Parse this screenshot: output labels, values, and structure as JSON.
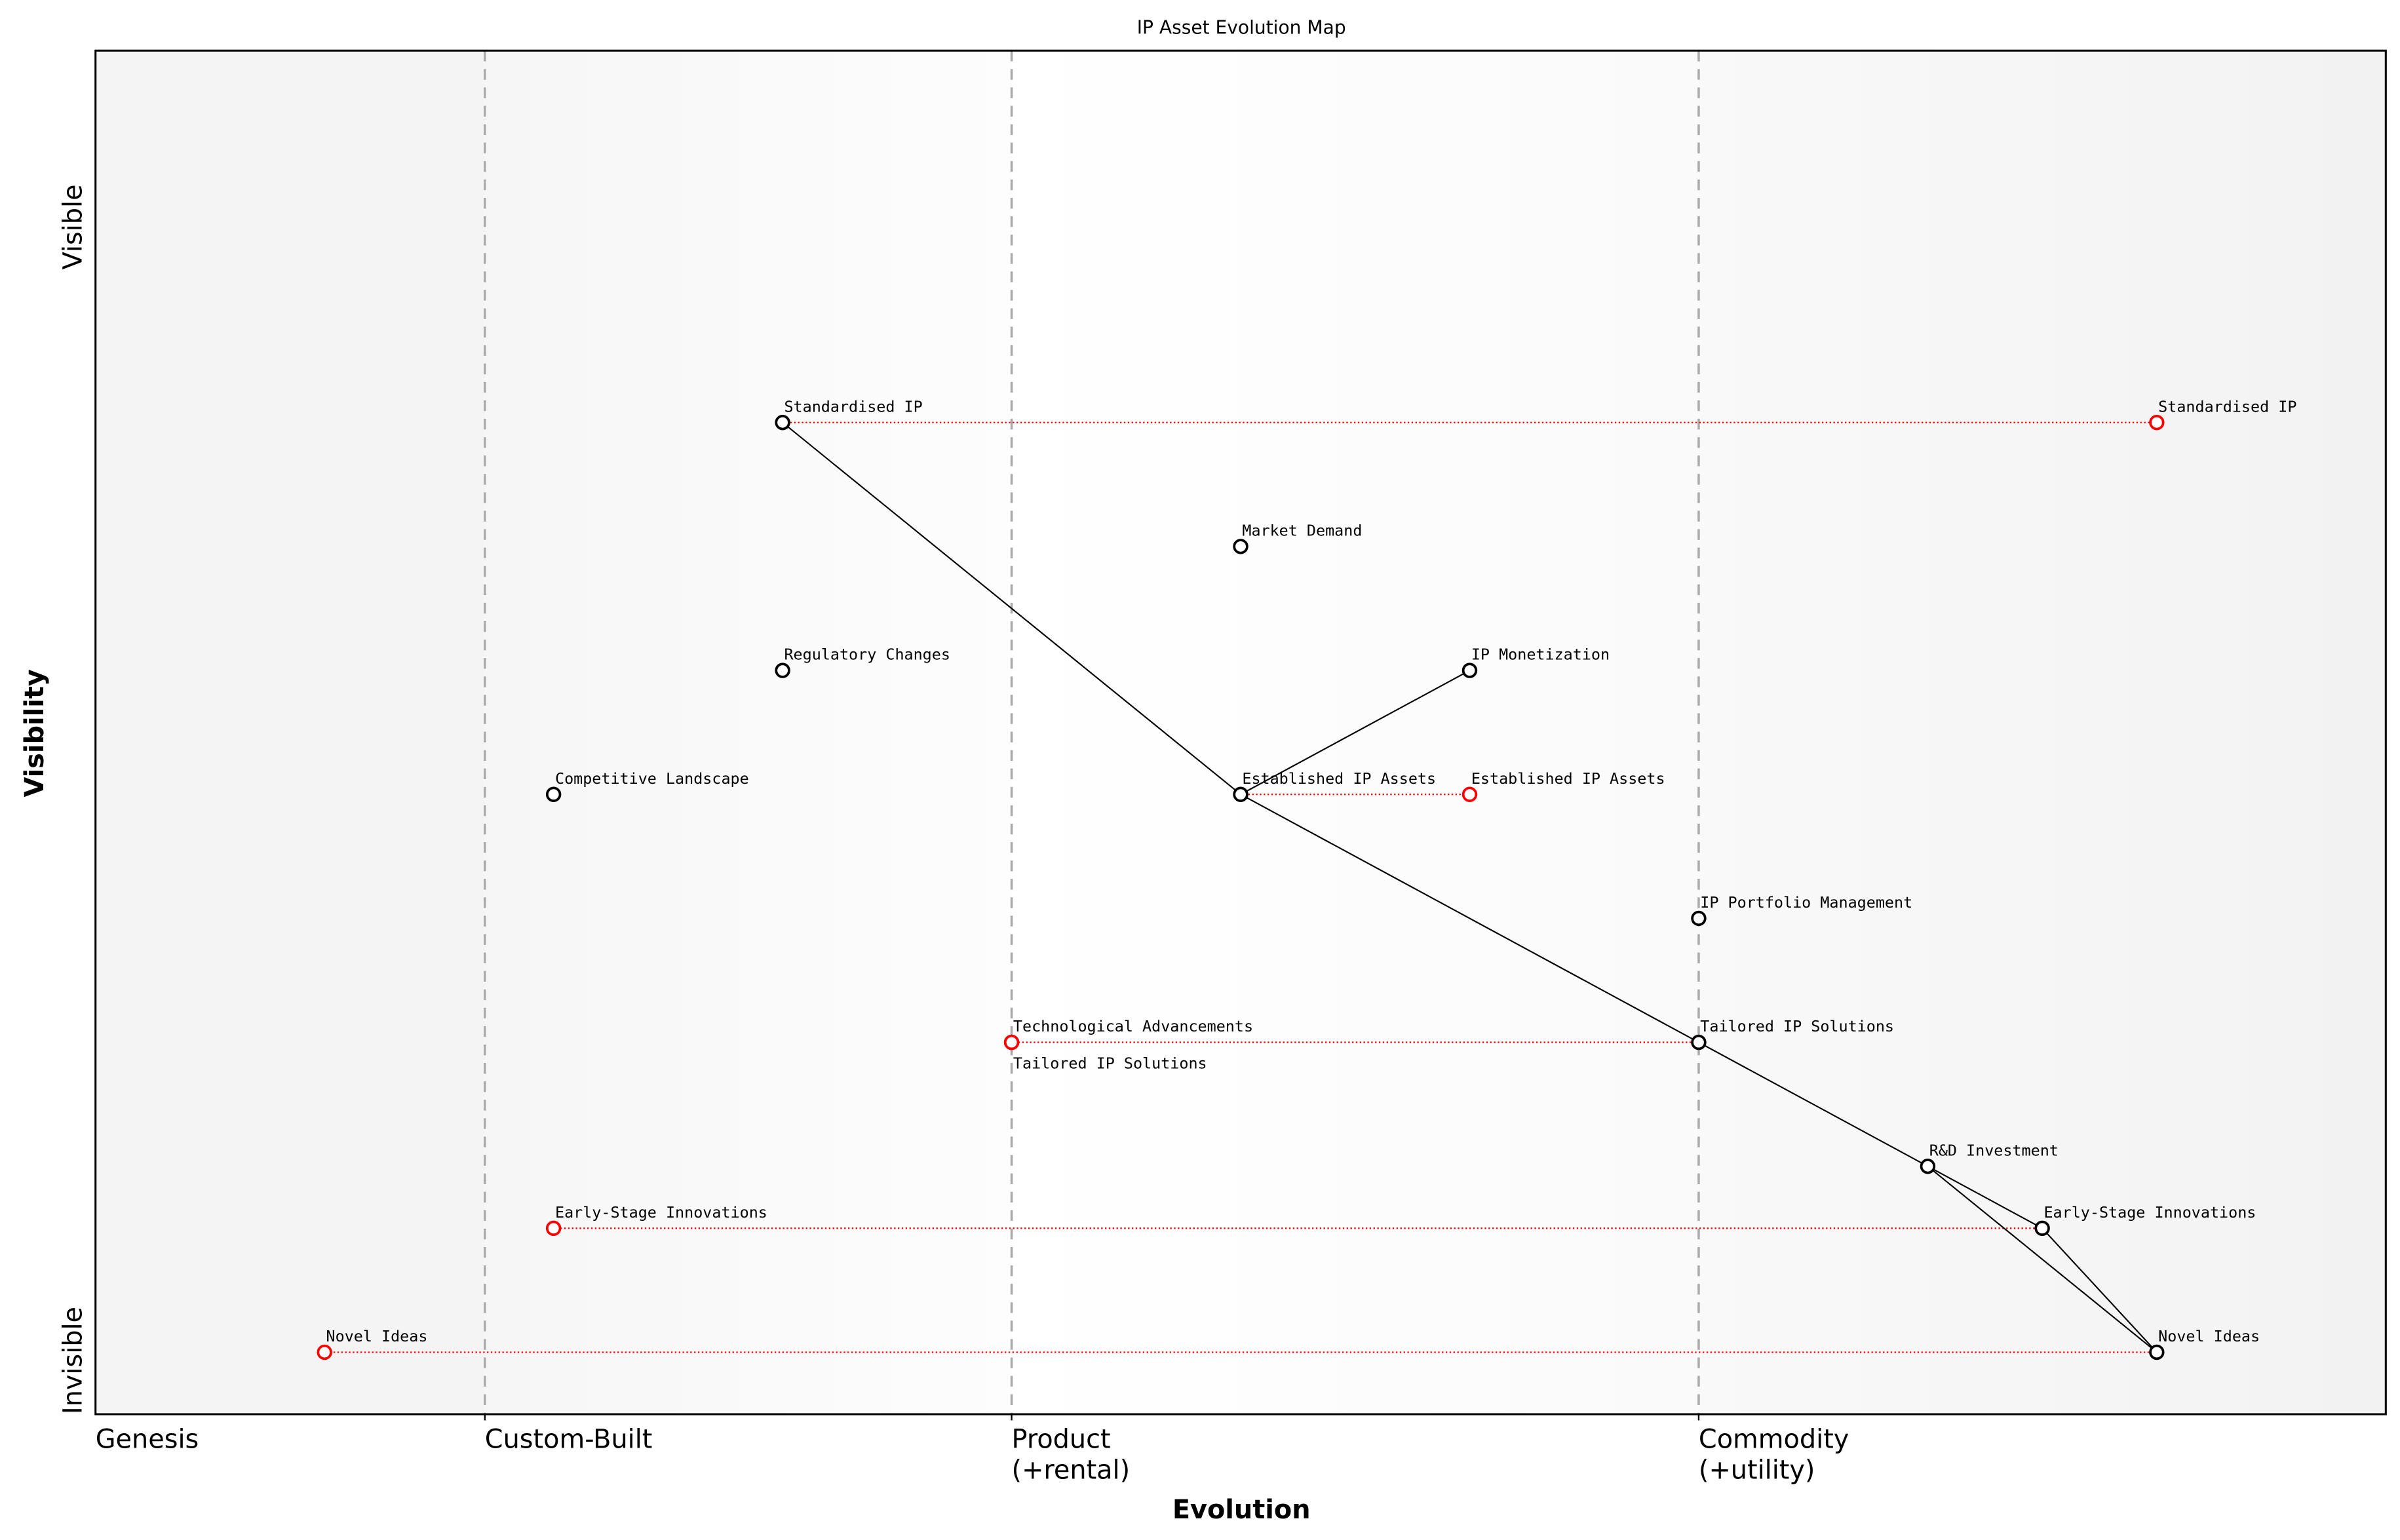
{
  "chart_data": {
    "type": "scatter",
    "title": "IP Asset Evolution Map",
    "xlabel": "Evolution",
    "ylabel": "Visibility",
    "xlim": [
      0,
      1
    ],
    "ylim": [
      -0.05,
      1.05
    ],
    "grid": false,
    "x_stage_boundaries": [
      0.17,
      0.4,
      0.7
    ],
    "x_tick_labels": [
      {
        "x": 0,
        "label": "Genesis"
      },
      {
        "x": 0.17,
        "label": "Custom-Built"
      },
      {
        "x": 0.4,
        "label": "Product\n(+rental)"
      },
      {
        "x": 0.7,
        "label": "Commodity\n(+utility)"
      }
    ],
    "y_tick_labels": [
      {
        "y": 0,
        "label": "Invisible"
      },
      {
        "y": 0.9,
        "label": "Visible"
      }
    ],
    "colors": {
      "component": "#000000",
      "evolved": "#ff0000",
      "link": "#000000",
      "evolve_line": "#ff0000",
      "stage_line": "#aaaaaa"
    },
    "components": [
      {
        "name": "Standardised IP",
        "x": 0.3,
        "y": 0.75
      },
      {
        "name": "Market Demand",
        "x": 0.5,
        "y": 0.65
      },
      {
        "name": "Regulatory Changes",
        "x": 0.3,
        "y": 0.55
      },
      {
        "name": "IP Monetization",
        "x": 0.6,
        "y": 0.55
      },
      {
        "name": "Competitive Landscape",
        "x": 0.2,
        "y": 0.45
      },
      {
        "name": "Established IP Assets",
        "x": 0.5,
        "y": 0.45
      },
      {
        "name": "IP Portfolio Management",
        "x": 0.7,
        "y": 0.35
      },
      {
        "name": "Technological Advancements",
        "x": 0.4,
        "y": 0.25
      },
      {
        "name": "Tailored IP Solutions",
        "x": 0.7,
        "y": 0.25
      },
      {
        "name": "R&D Investment",
        "x": 0.8,
        "y": 0.15
      },
      {
        "name": "Early-Stage Innovations",
        "x": 0.85,
        "y": 0.1
      },
      {
        "name": "Novel Ideas",
        "x": 0.9,
        "y": 0.0
      }
    ],
    "evolved": [
      {
        "name": "Standardised IP",
        "x": 0.9,
        "y": 0.75,
        "from_x": 0.3
      },
      {
        "name": "Established IP Assets",
        "x": 0.6,
        "y": 0.45,
        "from_x": 0.5
      },
      {
        "name": "Tailored IP Solutions",
        "x": 0.4,
        "y": 0.25,
        "from_x": 0.7
      },
      {
        "name": "Early-Stage Innovations",
        "x": 0.2,
        "y": 0.1,
        "from_x": 0.85
      },
      {
        "name": "Novel Ideas",
        "x": 0.1,
        "y": 0.0,
        "from_x": 0.9
      }
    ],
    "links": [
      [
        "Standardised IP",
        "Established IP Assets"
      ],
      [
        "Established IP Assets",
        "IP Monetization"
      ],
      [
        "Established IP Assets",
        "Tailored IP Solutions"
      ],
      [
        "Tailored IP Solutions",
        "R&D Investment"
      ],
      [
        "R&D Investment",
        "Early-Stage Innovations"
      ],
      [
        "R&D Investment",
        "Novel Ideas"
      ],
      [
        "Early-Stage Innovations",
        "Novel Ideas"
      ]
    ]
  }
}
